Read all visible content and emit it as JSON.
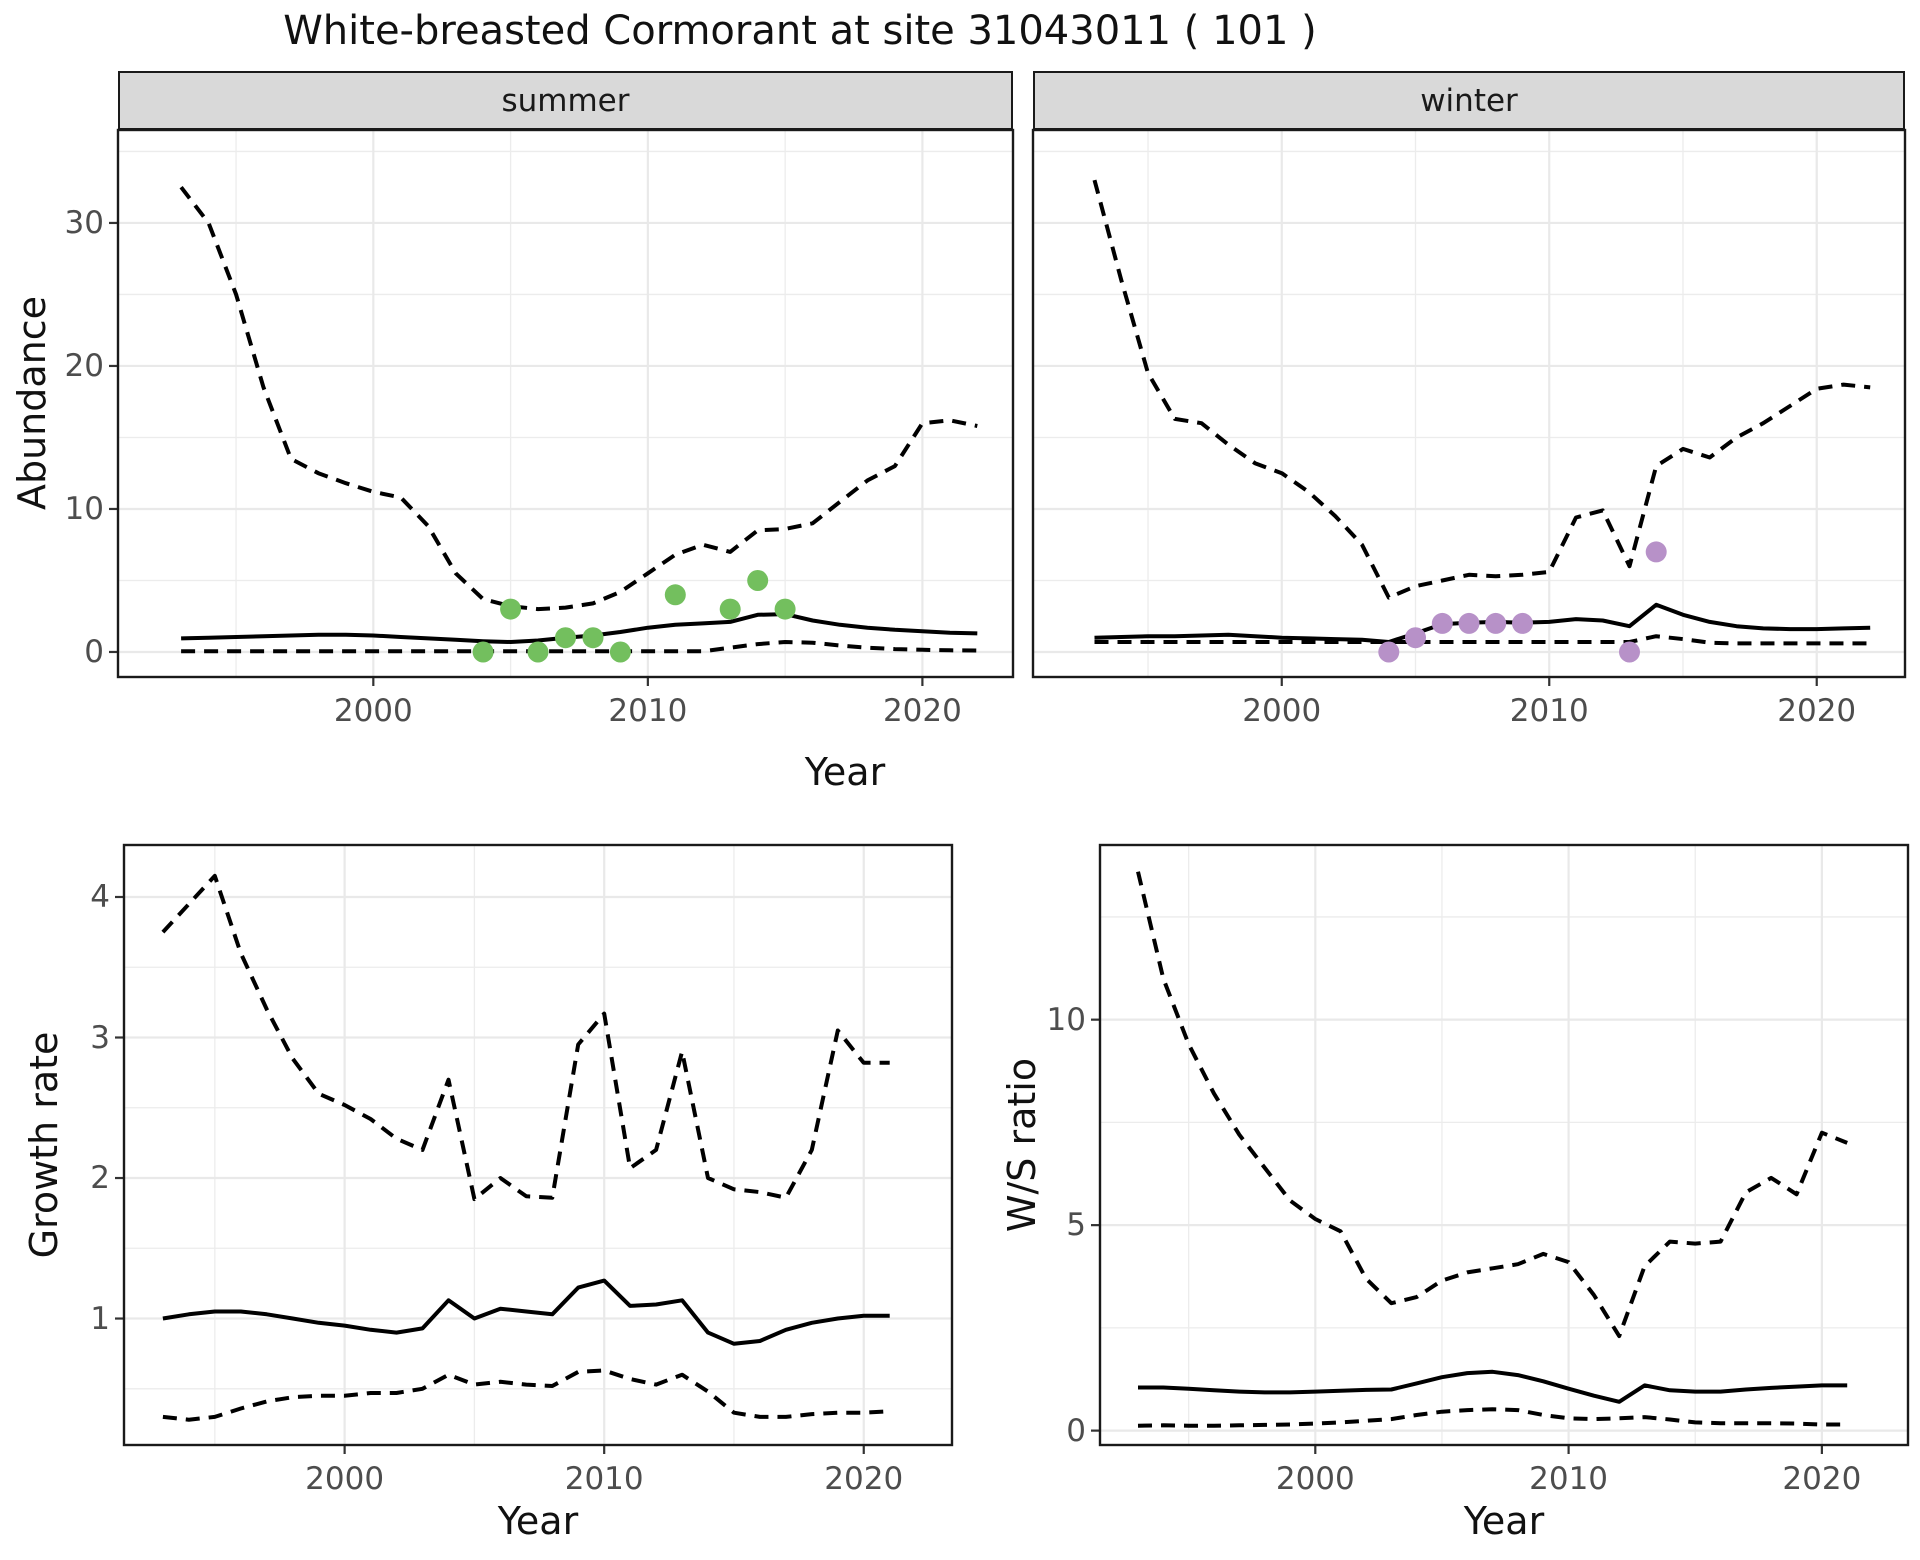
{
  "title": "White-breasted Cormorant at site 31043011 ( 101 )",
  "colors": {
    "summer_points": "#73BF5E",
    "winter_points": "#B791C8",
    "line": "#000000",
    "strip_bg": "#D9D9D9",
    "grid": "#EBEBEB",
    "tick_text": "#4D4D4D",
    "border": "#1A1A1A"
  },
  "axes": {
    "y_label_top": "Abundance",
    "y_label_growth": "Growth rate",
    "y_label_ws": "W/S ratio",
    "x_label_top": "Year",
    "x_label_bottom_left": "Year",
    "x_label_bottom_right": "Year"
  },
  "chart_data": [
    {
      "key": "summer",
      "strip": "summer",
      "type": "line",
      "xlabel": "Year",
      "ylabel": "Abundance",
      "x_domain": [
        1990.7,
        2023.3
      ],
      "y_domain": [
        -1.75,
        36.5
      ],
      "x_ticks": [
        2000,
        2010,
        2020
      ],
      "x_minor": [
        1995,
        2005,
        2015
      ],
      "y_ticks": [
        0,
        10,
        20,
        30
      ],
      "y_minor": [
        5,
        15,
        25,
        35
      ],
      "years": [
        1993,
        1994,
        1995,
        1996,
        1997,
        1998,
        1999,
        2000,
        2001,
        2002,
        2003,
        2004,
        2005,
        2006,
        2007,
        2008,
        2009,
        2010,
        2011,
        2012,
        2013,
        2014,
        2015,
        2016,
        2017,
        2018,
        2019,
        2020,
        2021,
        2022
      ],
      "series": [
        {
          "name": "upper_ci",
          "style": "dashed",
          "values": [
            32.5,
            30,
            25,
            18.5,
            13.5,
            12.5,
            11.8,
            11.2,
            10.8,
            8.8,
            5.5,
            3.7,
            3.2,
            3.0,
            3.1,
            3.4,
            4.2,
            5.5,
            6.8,
            7.5,
            7.0,
            8.5,
            8.6,
            9.0,
            10.5,
            12.0,
            13.0,
            16.0,
            16.2,
            15.8
          ]
        },
        {
          "name": "median",
          "style": "solid",
          "values": [
            0.95,
            1.0,
            1.05,
            1.1,
            1.15,
            1.2,
            1.2,
            1.15,
            1.05,
            0.95,
            0.85,
            0.75,
            0.7,
            0.8,
            1.0,
            1.15,
            1.4,
            1.7,
            1.9,
            2.0,
            2.1,
            2.6,
            2.65,
            2.2,
            1.9,
            1.7,
            1.55,
            1.45,
            1.35,
            1.3
          ]
        },
        {
          "name": "lower_ci",
          "style": "dashed",
          "values": [
            0.05,
            0.05,
            0.05,
            0.05,
            0.05,
            0.05,
            0.05,
            0.05,
            0.05,
            0.05,
            0.05,
            0.05,
            0.05,
            0.05,
            0.05,
            0.05,
            0.05,
            0.05,
            0.05,
            0.05,
            0.3,
            0.55,
            0.7,
            0.65,
            0.45,
            0.3,
            0.2,
            0.15,
            0.12,
            0.1
          ]
        }
      ],
      "points": {
        "color_ref": "summer_points",
        "years": [
          2004,
          2005,
          2006,
          2007,
          2008,
          2009,
          2011,
          2013,
          2014,
          2015
        ],
        "values": [
          0,
          3,
          0,
          1,
          1,
          0,
          4,
          3,
          5,
          3
        ]
      }
    },
    {
      "key": "winter",
      "strip": "winter",
      "type": "line",
      "xlabel": "Year",
      "ylabel": "Abundance",
      "x_domain": [
        1990.7,
        2023.3
      ],
      "y_domain": [
        -1.75,
        36.5
      ],
      "x_ticks": [
        2000,
        2010,
        2020
      ],
      "x_minor": [
        1995,
        2005,
        2015
      ],
      "y_ticks": [
        0,
        10,
        20,
        30
      ],
      "y_minor": [
        5,
        15,
        25,
        35
      ],
      "years": [
        1993,
        1994,
        1995,
        1996,
        1997,
        1998,
        1999,
        2000,
        2001,
        2002,
        2003,
        2004,
        2005,
        2006,
        2007,
        2008,
        2009,
        2010,
        2011,
        2012,
        2013,
        2014,
        2015,
        2016,
        2017,
        2018,
        2019,
        2020,
        2021,
        2022
      ],
      "series": [
        {
          "name": "upper_ci",
          "style": "dashed",
          "values": [
            33,
            26,
            19.5,
            16.3,
            16.0,
            14.5,
            13.2,
            12.5,
            11.2,
            9.5,
            7.5,
            3.8,
            4.6,
            5.0,
            5.4,
            5.3,
            5.4,
            5.6,
            9.4,
            9.9,
            6.0,
            13.0,
            14.2,
            13.6,
            15.0,
            16.0,
            17.2,
            18.4,
            18.7,
            18.5
          ]
        },
        {
          "name": "median",
          "style": "solid",
          "values": [
            1.0,
            1.05,
            1.1,
            1.1,
            1.15,
            1.2,
            1.1,
            1.0,
            0.95,
            0.9,
            0.85,
            0.7,
            1.3,
            1.95,
            2.05,
            2.1,
            2.05,
            2.1,
            2.3,
            2.2,
            1.8,
            3.3,
            2.6,
            2.1,
            1.8,
            1.65,
            1.6,
            1.6,
            1.65,
            1.7
          ]
        },
        {
          "name": "lower_ci",
          "style": "dashed",
          "values": [
            0.7,
            0.7,
            0.7,
            0.7,
            0.7,
            0.7,
            0.7,
            0.7,
            0.7,
            0.7,
            0.7,
            0.7,
            0.7,
            0.7,
            0.7,
            0.7,
            0.7,
            0.7,
            0.7,
            0.7,
            0.7,
            1.1,
            0.9,
            0.65,
            0.6,
            0.6,
            0.6,
            0.6,
            0.6,
            0.6
          ]
        }
      ],
      "points": {
        "color_ref": "winter_points",
        "years": [
          2004,
          2005,
          2006,
          2007,
          2008,
          2009,
          2013,
          2014
        ],
        "values": [
          0,
          1,
          2,
          2,
          2,
          2,
          0,
          7
        ]
      }
    },
    {
      "key": "growth",
      "strip": "",
      "type": "line",
      "xlabel": "Year",
      "ylabel": "Growth rate",
      "x_domain": [
        1991.5,
        2023.4
      ],
      "y_domain": [
        0.1,
        4.37
      ],
      "x_ticks": [
        2000,
        2010,
        2020
      ],
      "x_minor": [
        1995,
        2005,
        2015
      ],
      "y_ticks": [
        1,
        2,
        3,
        4
      ],
      "y_minor": [
        0.5,
        1.5,
        2.5,
        3.5
      ],
      "years": [
        1993,
        1994,
        1995,
        1996,
        1997,
        1998,
        1999,
        2000,
        2001,
        2002,
        2003,
        2004,
        2005,
        2006,
        2007,
        2008,
        2009,
        2010,
        2011,
        2012,
        2013,
        2014,
        2015,
        2016,
        2017,
        2018,
        2019,
        2020,
        2021
      ],
      "series": [
        {
          "name": "upper_ci",
          "style": "dashed",
          "values": [
            3.75,
            3.95,
            4.15,
            3.6,
            3.2,
            2.85,
            2.6,
            2.52,
            2.42,
            2.28,
            2.2,
            2.7,
            1.85,
            2.0,
            1.87,
            1.86,
            2.95,
            3.17,
            2.07,
            2.2,
            2.9,
            2.0,
            1.92,
            1.9,
            1.86,
            2.2,
            3.05,
            2.82,
            2.82
          ]
        },
        {
          "name": "median",
          "style": "solid",
          "values": [
            1.0,
            1.03,
            1.05,
            1.05,
            1.03,
            1.0,
            0.97,
            0.95,
            0.92,
            0.9,
            0.93,
            1.13,
            1.0,
            1.07,
            1.05,
            1.03,
            1.22,
            1.27,
            1.09,
            1.1,
            1.13,
            0.9,
            0.82,
            0.84,
            0.92,
            0.97,
            1.0,
            1.02,
            1.02
          ]
        },
        {
          "name": "lower_ci",
          "style": "dashed",
          "values": [
            0.3,
            0.28,
            0.3,
            0.36,
            0.41,
            0.44,
            0.45,
            0.45,
            0.47,
            0.47,
            0.5,
            0.6,
            0.53,
            0.55,
            0.53,
            0.52,
            0.62,
            0.63,
            0.57,
            0.53,
            0.6,
            0.48,
            0.33,
            0.3,
            0.3,
            0.32,
            0.33,
            0.33,
            0.34
          ]
        }
      ],
      "points": null
    },
    {
      "key": "ws",
      "strip": "",
      "type": "line",
      "xlabel": "Year",
      "ylabel": "W/S ratio",
      "x_domain": [
        1991.5,
        2023.4
      ],
      "y_domain": [
        -0.35,
        14.25
      ],
      "x_ticks": [
        2000,
        2010,
        2020
      ],
      "x_minor": [
        1995,
        2005,
        2015
      ],
      "y_ticks": [
        0,
        5,
        10
      ],
      "y_minor": [
        2.5,
        7.5,
        12.5
      ],
      "years": [
        1993,
        1994,
        1995,
        1996,
        1997,
        1998,
        1999,
        2000,
        2001,
        2002,
        2003,
        2004,
        2005,
        2006,
        2007,
        2008,
        2009,
        2010,
        2011,
        2012,
        2013,
        2014,
        2015,
        2016,
        2017,
        2018,
        2019,
        2020,
        2021
      ],
      "series": [
        {
          "name": "upper_ci",
          "style": "dashed",
          "values": [
            13.6,
            11.0,
            9.4,
            8.2,
            7.2,
            6.4,
            5.6,
            5.15,
            4.85,
            3.7,
            3.1,
            3.25,
            3.65,
            3.85,
            3.95,
            4.05,
            4.3,
            4.1,
            3.3,
            2.3,
            4.0,
            4.6,
            4.55,
            4.6,
            5.8,
            6.15,
            5.75,
            7.25,
            7.0
          ]
        },
        {
          "name": "median",
          "style": "solid",
          "values": [
            1.05,
            1.05,
            1.02,
            0.98,
            0.95,
            0.93,
            0.93,
            0.95,
            0.97,
            0.99,
            1.0,
            1.15,
            1.3,
            1.4,
            1.43,
            1.35,
            1.2,
            1.02,
            0.85,
            0.7,
            1.1,
            0.98,
            0.95,
            0.95,
            1.0,
            1.04,
            1.07,
            1.1,
            1.1
          ]
        },
        {
          "name": "lower_ci",
          "style": "dashed",
          "values": [
            0.12,
            0.13,
            0.12,
            0.12,
            0.13,
            0.14,
            0.15,
            0.17,
            0.2,
            0.24,
            0.28,
            0.38,
            0.46,
            0.5,
            0.52,
            0.5,
            0.38,
            0.3,
            0.28,
            0.3,
            0.33,
            0.27,
            0.2,
            0.18,
            0.18,
            0.18,
            0.17,
            0.15,
            0.15
          ]
        }
      ],
      "points": null
    }
  ]
}
